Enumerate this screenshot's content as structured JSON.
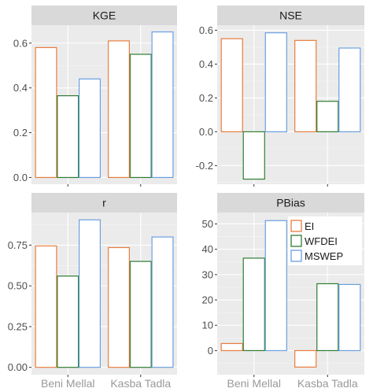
{
  "chart_data": {
    "type": "bar",
    "layout": "facet-grid-2x2",
    "categories": [
      "Beni Mellal",
      "Kasba Tadla"
    ],
    "legend": {
      "placement": "inside-bottom-right-panel-top-right",
      "entries": [
        {
          "name": "EI",
          "color": "#e87d3e"
        },
        {
          "name": "WFDEI",
          "color": "#2e7d32"
        },
        {
          "name": "MSWEP",
          "color": "#6a9fe0"
        }
      ]
    },
    "bar_fill": "#ffffff",
    "panel_background": "#ebebeb",
    "strip_background": "#d9d9d9",
    "grid": true,
    "panels": [
      {
        "title": "KGE",
        "ylim": [
          -0.03,
          0.68
        ],
        "ticks": [
          0.0,
          0.2,
          0.4,
          0.6
        ],
        "tick_labels": [
          "0.0",
          "0.2",
          "0.4",
          "0.6"
        ],
        "series": [
          {
            "name": "EI",
            "values": [
              0.58,
              0.61
            ]
          },
          {
            "name": "WFDEI",
            "values": [
              0.365,
              0.55
            ]
          },
          {
            "name": "MSWEP",
            "values": [
              0.44,
              0.65
            ]
          }
        ]
      },
      {
        "title": "NSE",
        "ylim": [
          -0.31,
          0.63
        ],
        "ticks": [
          -0.2,
          0.0,
          0.2,
          0.4,
          0.6
        ],
        "tick_labels": [
          "-0.2",
          "0.0",
          "0.2",
          "0.4",
          "0.6"
        ],
        "series": [
          {
            "name": "EI",
            "values": [
              0.55,
              0.54
            ]
          },
          {
            "name": "WFDEI",
            "values": [
              -0.28,
              0.18
            ]
          },
          {
            "name": "MSWEP",
            "values": [
              0.585,
              0.495
            ]
          }
        ]
      },
      {
        "title": "r",
        "ylim": [
          -0.045,
          0.95
        ],
        "ticks": [
          0.0,
          0.25,
          0.5,
          0.75
        ],
        "tick_labels": [
          "0.00",
          "0.25",
          "0.50",
          "0.75"
        ],
        "series": [
          {
            "name": "EI",
            "values": [
              0.745,
              0.735
            ]
          },
          {
            "name": "WFDEI",
            "values": [
              0.56,
              0.65
            ]
          },
          {
            "name": "MSWEP",
            "values": [
              0.905,
              0.8
            ]
          }
        ]
      },
      {
        "title": "PBias",
        "ylim": [
          -9.5,
          54.5
        ],
        "ticks": [
          0,
          10,
          20,
          30,
          40,
          50
        ],
        "tick_labels": [
          "0",
          "10",
          "20",
          "30",
          "40",
          "50"
        ],
        "series": [
          {
            "name": "EI",
            "values": [
              2.8,
              -6.5
            ]
          },
          {
            "name": "WFDEI",
            "values": [
              36.5,
              26.4
            ]
          },
          {
            "name": "MSWEP",
            "values": [
              51.3,
              26.1
            ]
          }
        ]
      }
    ]
  }
}
